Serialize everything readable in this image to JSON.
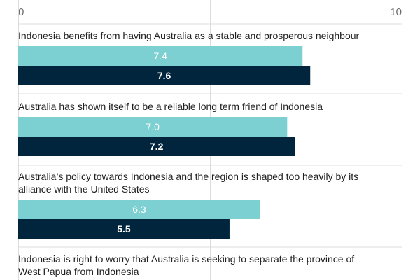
{
  "chart_data": {
    "type": "bar",
    "orientation": "horizontal",
    "xlim": [
      0,
      10
    ],
    "ticks": [
      "0",
      "10"
    ],
    "grid": true,
    "colors": {
      "series_1": "#7dd0d1",
      "series_2": "#00253d",
      "gridline": "#dcdcdc",
      "tick_text": "#6b6b6b",
      "value_text_light": "#ffffff"
    },
    "categories": [
      [
        "Indonesia benefits from having Australia as a stable and prosperous neighbour"
      ],
      [
        "Australia has shown itself to be a reliable long term friend of Indonesia"
      ],
      [
        "Australia’s policy towards Indonesia and the region is shaped too heavily by its",
        "alliance with the United States"
      ],
      [
        "Indonesia is right to worry that Australia is seeking to separate the province of",
        "West Papua from Indonesia"
      ]
    ],
    "series": [
      {
        "values": [
          7.4,
          7.0,
          6.3,
          null
        ],
        "labels": [
          "7.4",
          "7.0",
          "6.3",
          ""
        ]
      },
      {
        "values": [
          7.6,
          7.2,
          5.5,
          null
        ],
        "labels": [
          "7.6",
          "7.2",
          "5.5",
          ""
        ]
      }
    ]
  }
}
